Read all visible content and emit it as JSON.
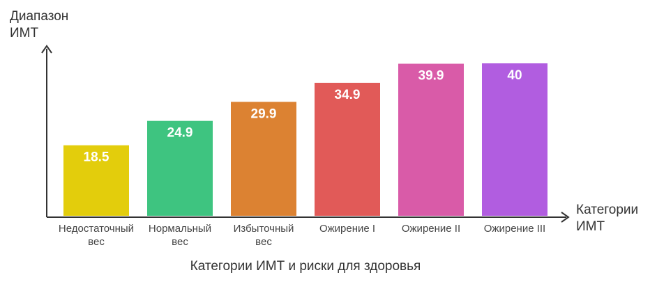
{
  "chart_data": {
    "type": "bar",
    "title": "Категории ИМТ и риски для здоровья",
    "ylabel": "Диапазон\nИМТ",
    "xlabel": "Категории\nИМТ",
    "categories": [
      "Недостаточный\nвес",
      "Нормальный\nвес",
      "Избыточный\nвес",
      "Ожирение I",
      "Ожирение II",
      "Ожирение III"
    ],
    "values": [
      18.5,
      24.9,
      29.9,
      34.9,
      39.9,
      40
    ],
    "value_labels": [
      "18.5",
      "24.9",
      "29.9",
      "34.9",
      "39.9",
      "40"
    ],
    "colors": [
      "#e3cd0c",
      "#3ec480",
      "#dc8232",
      "#e15a58",
      "#d95ba8",
      "#b15de0"
    ],
    "ylim": [
      0,
      40
    ],
    "grid": false,
    "legend": "none"
  }
}
